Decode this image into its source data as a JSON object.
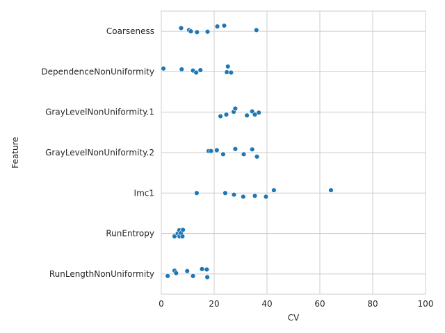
{
  "chart_data": {
    "type": "scatter",
    "title": "",
    "xlabel": "CV",
    "ylabel": "Feature",
    "xlim": [
      0,
      100
    ],
    "xticks": [
      0,
      20,
      40,
      60,
      80,
      100
    ],
    "grid": true,
    "legend": "none",
    "categories": [
      "Coarseness",
      "DependenceNonUniformity",
      "GrayLevelNonUniformity.1",
      "GrayLevelNonUniformity.2",
      "Imc1",
      "RunEntropy",
      "RunLengthNonUniformity"
    ],
    "series": [
      {
        "color": "#1f77b4",
        "points": [
          {
            "feature": "Coarseness",
            "cv": 7.5,
            "jitter": -0.08
          },
          {
            "feature": "Coarseness",
            "cv": 10.5,
            "jitter": -0.03
          },
          {
            "feature": "Coarseness",
            "cv": 11.2,
            "jitter": 0.0
          },
          {
            "feature": "Coarseness",
            "cv": 13.5,
            "jitter": 0.02
          },
          {
            "feature": "Coarseness",
            "cv": 17.5,
            "jitter": 0.01
          },
          {
            "feature": "Coarseness",
            "cv": 21.2,
            "jitter": -0.12
          },
          {
            "feature": "Coarseness",
            "cv": 23.8,
            "jitter": -0.14
          },
          {
            "feature": "Coarseness",
            "cv": 36.0,
            "jitter": -0.03
          },
          {
            "feature": "DependenceNonUniformity",
            "cv": 0.8,
            "jitter": -0.08
          },
          {
            "feature": "DependenceNonUniformity",
            "cv": 7.7,
            "jitter": -0.06
          },
          {
            "feature": "DependenceNonUniformity",
            "cv": 12.0,
            "jitter": -0.03
          },
          {
            "feature": "DependenceNonUniformity",
            "cv": 13.2,
            "jitter": 0.02
          },
          {
            "feature": "DependenceNonUniformity",
            "cv": 14.8,
            "jitter": -0.04
          },
          {
            "feature": "DependenceNonUniformity",
            "cv": 25.2,
            "jitter": -0.13
          },
          {
            "feature": "DependenceNonUniformity",
            "cv": 24.8,
            "jitter": 0.01
          },
          {
            "feature": "DependenceNonUniformity",
            "cv": 26.4,
            "jitter": 0.02
          },
          {
            "feature": "GrayLevelNonUniformity.1",
            "cv": 22.4,
            "jitter": 0.1
          },
          {
            "feature": "GrayLevelNonUniformity.1",
            "cv": 24.6,
            "jitter": 0.06
          },
          {
            "feature": "GrayLevelNonUniformity.1",
            "cv": 27.4,
            "jitter": -0.01
          },
          {
            "feature": "GrayLevelNonUniformity.1",
            "cv": 28.0,
            "jitter": -0.09
          },
          {
            "feature": "GrayLevelNonUniformity.1",
            "cv": 32.4,
            "jitter": 0.08
          },
          {
            "feature": "GrayLevelNonUniformity.1",
            "cv": 34.4,
            "jitter": -0.02
          },
          {
            "feature": "GrayLevelNonUniformity.1",
            "cv": 35.4,
            "jitter": 0.06
          },
          {
            "feature": "GrayLevelNonUniformity.1",
            "cv": 36.9,
            "jitter": 0.01
          },
          {
            "feature": "GrayLevelNonUniformity.2",
            "cv": 17.9,
            "jitter": -0.04
          },
          {
            "feature": "GrayLevelNonUniformity.2",
            "cv": 18.8,
            "jitter": -0.04
          },
          {
            "feature": "GrayLevelNonUniformity.2",
            "cv": 21.0,
            "jitter": -0.06
          },
          {
            "feature": "GrayLevelNonUniformity.2",
            "cv": 23.4,
            "jitter": 0.04
          },
          {
            "feature": "GrayLevelNonUniformity.2",
            "cv": 28.0,
            "jitter": -0.09
          },
          {
            "feature": "GrayLevelNonUniformity.2",
            "cv": 31.2,
            "jitter": 0.04
          },
          {
            "feature": "GrayLevelNonUniformity.2",
            "cv": 34.4,
            "jitter": -0.08
          },
          {
            "feature": "GrayLevelNonUniformity.2",
            "cv": 36.2,
            "jitter": 0.1
          },
          {
            "feature": "Imc1",
            "cv": 13.4,
            "jitter": 0.0
          },
          {
            "feature": "Imc1",
            "cv": 24.2,
            "jitter": 0.0
          },
          {
            "feature": "Imc1",
            "cv": 27.5,
            "jitter": 0.04
          },
          {
            "feature": "Imc1",
            "cv": 31.0,
            "jitter": 0.09
          },
          {
            "feature": "Imc1",
            "cv": 35.4,
            "jitter": 0.07
          },
          {
            "feature": "Imc1",
            "cv": 39.6,
            "jitter": 0.09
          },
          {
            "feature": "Imc1",
            "cv": 42.6,
            "jitter": -0.07
          },
          {
            "feature": "Imc1",
            "cv": 64.2,
            "jitter": -0.07
          },
          {
            "feature": "RunEntropy",
            "cv": 5.0,
            "jitter": 0.07
          },
          {
            "feature": "RunEntropy",
            "cv": 6.2,
            "jitter": 0.0
          },
          {
            "feature": "RunEntropy",
            "cv": 6.8,
            "jitter": -0.08
          },
          {
            "feature": "RunEntropy",
            "cv": 6.9,
            "jitter": 0.07
          },
          {
            "feature": "RunEntropy",
            "cv": 7.4,
            "jitter": -0.01
          },
          {
            "feature": "RunEntropy",
            "cv": 8.0,
            "jitter": 0.07
          },
          {
            "feature": "RunEntropy",
            "cv": 8.2,
            "jitter": -0.09
          },
          {
            "feature": "RunLengthNonUniformity",
            "cv": 2.4,
            "jitter": 0.05
          },
          {
            "feature": "RunLengthNonUniformity",
            "cv": 5.0,
            "jitter": -0.08
          },
          {
            "feature": "RunLengthNonUniformity",
            "cv": 5.6,
            "jitter": -0.02
          },
          {
            "feature": "RunLengthNonUniformity",
            "cv": 9.8,
            "jitter": -0.07
          },
          {
            "feature": "RunLengthNonUniformity",
            "cv": 12.0,
            "jitter": 0.05
          },
          {
            "feature": "RunLengthNonUniformity",
            "cv": 15.4,
            "jitter": -0.12
          },
          {
            "feature": "RunLengthNonUniformity",
            "cv": 17.2,
            "jitter": -0.11
          },
          {
            "feature": "RunLengthNonUniformity",
            "cv": 17.4,
            "jitter": 0.08
          }
        ]
      }
    ]
  }
}
